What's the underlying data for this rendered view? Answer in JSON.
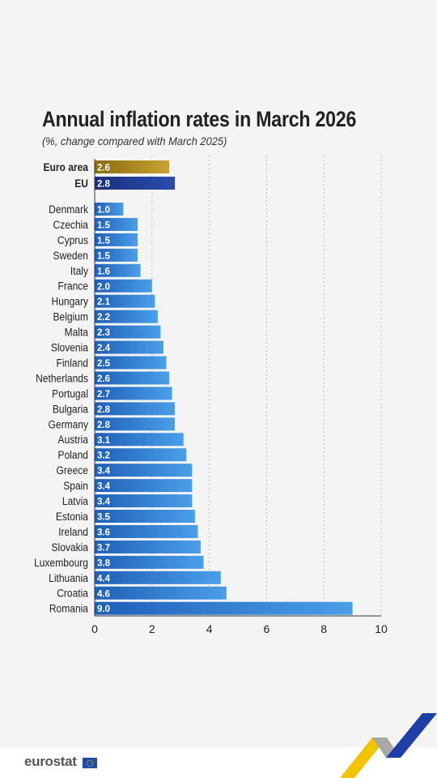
{
  "chart_data": {
    "type": "bar",
    "orientation": "horizontal",
    "title": "Annual inflation rates in March 2026",
    "subtitle": "(%, change compared with March 2025)",
    "aggregates": [
      {
        "label": "Euro area",
        "value": 2.6,
        "display": "2.6"
      },
      {
        "label": "EU",
        "value": 2.8,
        "display": "2.8"
      }
    ],
    "categories": [
      "Denmark",
      "Czechia",
      "Cyprus",
      "Sweden",
      "Italy",
      "France",
      "Hungary",
      "Belgium",
      "Malta",
      "Slovenia",
      "Finland",
      "Netherlands",
      "Portugal",
      "Bulgaria",
      "Germany",
      "Austria",
      "Poland",
      "Greece",
      "Spain",
      "Latvia",
      "Estonia",
      "Ireland",
      "Slovakia",
      "Luxembourg",
      "Lithuania",
      "Croatia",
      "Romania"
    ],
    "values": [
      1.0,
      1.5,
      1.5,
      1.5,
      1.6,
      2.0,
      2.1,
      2.2,
      2.3,
      2.4,
      2.5,
      2.6,
      2.7,
      2.8,
      2.8,
      3.1,
      3.2,
      3.4,
      3.4,
      3.4,
      3.5,
      3.6,
      3.7,
      3.8,
      4.4,
      4.6,
      9.0
    ],
    "value_labels": [
      "1.0",
      "1.5",
      "1.5",
      "1.5",
      "1.6",
      "2.0",
      "2.1",
      "2.2",
      "2.3",
      "2.4",
      "2.5",
      "2.6",
      "2.7",
      "2.8",
      "2.8",
      "3.1",
      "3.2",
      "3.4",
      "3.4",
      "3.4",
      "3.5",
      "3.6",
      "3.7",
      "3.8",
      "4.4",
      "4.6",
      "9.0"
    ],
    "xlim": [
      0,
      10
    ],
    "xticks": [
      0,
      2,
      4,
      6,
      8,
      10
    ],
    "xtick_labels": [
      "0",
      "2",
      "4",
      "6",
      "8",
      "10"
    ],
    "grid": "vertical dashed",
    "colors": {
      "euro_area": "#b08d1e",
      "eu": "#1f3a93",
      "country_light": "#4a9fe8",
      "country_dark": "#1f5fb8",
      "grid": "#bbbbbb"
    }
  },
  "branding": {
    "logo_text": "eurostat"
  }
}
